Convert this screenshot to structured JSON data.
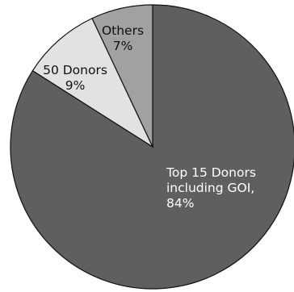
{
  "chart_data": {
    "type": "pie",
    "slices": [
      {
        "label_lines": [
          "Top 15 Donors",
          "including GOI,",
          "84%"
        ],
        "value": 84,
        "color": "#5f5f5f",
        "text_color": "#ffffff"
      },
      {
        "label_lines": [
          "50 Donors",
          "9%"
        ],
        "value": 9,
        "color": "#e2e2e2",
        "text_color": "#111111"
      },
      {
        "label_lines": [
          "Others",
          "7%"
        ],
        "value": 7,
        "color": "#a1a1a1",
        "text_color": "#111111"
      }
    ],
    "start": "top",
    "direction": "clockwise"
  }
}
